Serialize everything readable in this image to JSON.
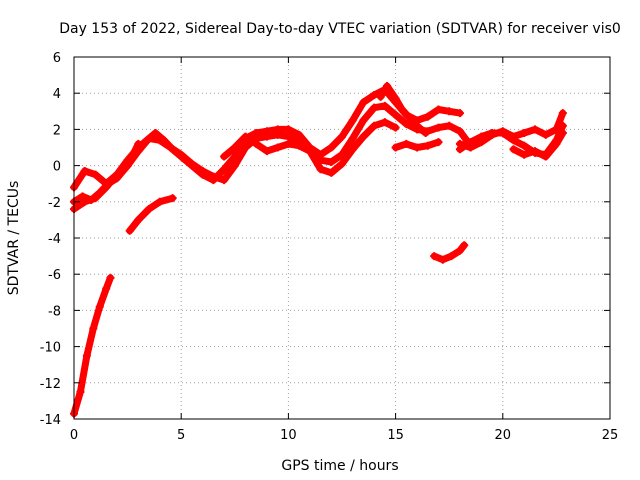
{
  "chart_data": {
    "type": "scatter",
    "title": "Day 153 of 2022, Sidereal Day-to-day VTEC variation (SDTVAR) for receiver vis0",
    "xlabel": "GPS time / hours",
    "ylabel": "SDTVAR / TECUs",
    "xlim": [
      0,
      25
    ],
    "ylim": [
      -14,
      6
    ],
    "xticks": [
      0,
      5,
      10,
      15,
      20,
      25
    ],
    "yticks": [
      -14,
      -12,
      -10,
      -8,
      -6,
      -4,
      -2,
      0,
      2,
      4,
      6
    ],
    "grid": true,
    "grid_style": "dotted",
    "marker_color": "#ff0000",
    "series": [
      {
        "x": [
          0.0,
          0.3,
          0.6,
          0.9,
          1.2,
          1.5,
          1.7
        ],
        "y": [
          -13.7,
          -12.5,
          -10.5,
          -9.0,
          -7.8,
          -6.8,
          -6.2
        ]
      },
      {
        "x": [
          0.0,
          0.5,
          1.0,
          1.5,
          2.0,
          2.5,
          3.0,
          3.5,
          3.8,
          4.2,
          4.6,
          5.0,
          5.5,
          6.0,
          6.5,
          7.0,
          7.5,
          8.0,
          8.5,
          9.0,
          9.5,
          10.0,
          10.5,
          11.0,
          11.5,
          12.0,
          12.5,
          13.0,
          13.5,
          14.0,
          14.5,
          15.0,
          15.5,
          16.0,
          16.5,
          17.0,
          17.5,
          18.0
        ],
        "y": [
          -1.2,
          -0.3,
          -0.5,
          -1.0,
          -0.5,
          0.0,
          0.8,
          1.5,
          1.8,
          1.4,
          0.9,
          0.5,
          0.0,
          -0.5,
          -0.8,
          -0.2,
          0.5,
          1.5,
          1.8,
          1.9,
          2.0,
          2.0,
          1.7,
          1.0,
          0.6,
          1.0,
          1.6,
          2.5,
          3.5,
          3.9,
          4.2,
          3.5,
          2.8,
          2.5,
          2.7,
          3.1,
          3.0,
          2.9
        ]
      },
      {
        "x": [
          0.0,
          0.5,
          1.0,
          1.5,
          2.0,
          2.5,
          3.0,
          3.5,
          4.0,
          4.5,
          5.0,
          5.5,
          6.0,
          6.5,
          7.0,
          7.5,
          8.0,
          8.5,
          9.0,
          9.5,
          10.0,
          10.5,
          11.0,
          11.5,
          12.0,
          12.5,
          13.0,
          13.5,
          14.0,
          14.5,
          15.0,
          15.5,
          16.0,
          16.5,
          17.0,
          17.5,
          18.0,
          18.5
        ],
        "y": [
          -2.4,
          -2.0,
          -1.8,
          -1.2,
          -0.5,
          0.3,
          1.0,
          1.5,
          1.4,
          1.0,
          0.6,
          0.1,
          -0.3,
          -0.6,
          -0.8,
          0.0,
          1.0,
          1.5,
          1.6,
          1.7,
          1.6,
          1.3,
          0.8,
          0.3,
          0.2,
          0.6,
          1.5,
          2.5,
          3.2,
          3.3,
          2.8,
          2.3,
          2.0,
          1.9,
          2.1,
          2.2,
          1.9,
          1.1
        ]
      },
      {
        "x": [
          0.0,
          0.4,
          0.8,
          1.2,
          1.6,
          2.0,
          2.5,
          3.0
        ],
        "y": [
          -2.0,
          -1.7,
          -1.9,
          -1.5,
          -1.0,
          -0.7,
          0.0,
          1.2
        ]
      },
      {
        "x": [
          7.0,
          7.5,
          8.0,
          8.5,
          9.0,
          9.5,
          10.0,
          10.5,
          11.0,
          11.5,
          12.0,
          12.5,
          13.0,
          13.5,
          14.0,
          14.5,
          15.0
        ],
        "y": [
          0.5,
          1.0,
          1.6,
          1.2,
          0.8,
          1.0,
          1.2,
          1.1,
          0.8,
          -0.2,
          -0.4,
          0.1,
          0.9,
          1.6,
          2.2,
          2.4,
          2.1
        ]
      },
      {
        "x": [
          14.3,
          14.6,
          15.0,
          15.3,
          15.6,
          16.0,
          16.4
        ],
        "y": [
          3.8,
          4.4,
          3.7,
          3.1,
          2.7,
          2.2,
          1.8
        ]
      },
      {
        "x": [
          15.0,
          15.5,
          16.0,
          16.5,
          17.0
        ],
        "y": [
          1.0,
          1.2,
          1.0,
          1.1,
          1.3
        ]
      },
      {
        "x": [
          18.0,
          18.5,
          19.0,
          19.5,
          20.0,
          20.5,
          21.0,
          21.5,
          22.0,
          22.5,
          22.8
        ],
        "y": [
          1.2,
          1.0,
          1.3,
          1.7,
          1.9,
          1.6,
          1.8,
          2.0,
          1.7,
          2.0,
          2.9
        ]
      },
      {
        "x": [
          18.0,
          18.5,
          19.0,
          19.5,
          20.0,
          20.5,
          21.0,
          21.5,
          22.0,
          22.5,
          22.8
        ],
        "y": [
          0.9,
          1.3,
          1.6,
          1.8,
          1.8,
          1.4,
          1.1,
          0.7,
          0.6,
          1.4,
          2.2
        ]
      },
      {
        "x": [
          20.5,
          21.0,
          21.5,
          22.0,
          22.5,
          22.8
        ],
        "y": [
          0.9,
          0.6,
          0.8,
          0.5,
          1.2,
          1.8
        ]
      },
      {
        "x": [
          2.6,
          3.0,
          3.5,
          4.0,
          4.6
        ],
        "y": [
          -3.6,
          -3.0,
          -2.4,
          -2.0,
          -1.8
        ]
      },
      {
        "x": [
          16.8,
          17.2,
          17.6,
          18.0,
          18.2
        ],
        "y": [
          -5.0,
          -5.2,
          -5.0,
          -4.7,
          -4.4
        ]
      }
    ]
  }
}
